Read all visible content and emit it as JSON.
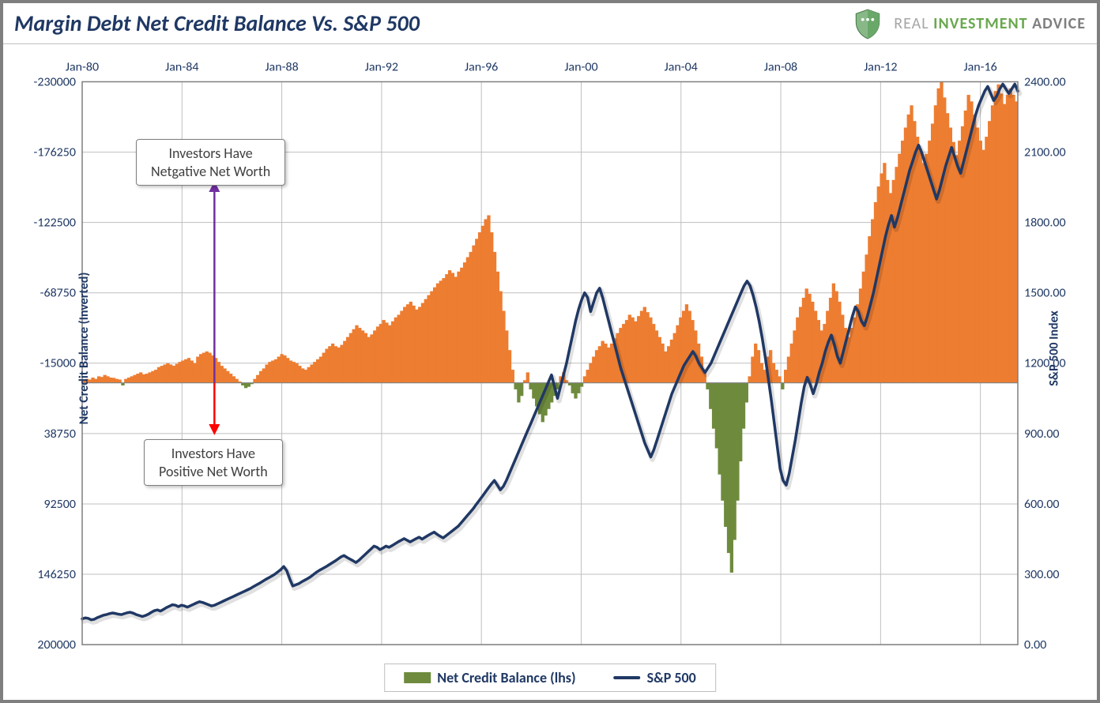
{
  "title": "Margin Debt Net Credit Balance Vs. S&P 500",
  "brand": {
    "t1": "REAL",
    "t2": "INVESTMENT",
    "t3": "ADVICE"
  },
  "chart": {
    "type": "combo-bar-line",
    "background_color": "#ffffff",
    "border_color": "#7f7f7f",
    "grid_color": "#bfbfbf",
    "plot_border_color": "#7f7f7f",
    "x_start": 1980,
    "x_end": 2017.5,
    "x_tick_step": 4,
    "x_ticks": [
      "Jan-80",
      "Jan-84",
      "Jan-88",
      "Jan-92",
      "Jan-96",
      "Jan-00",
      "Jan-04",
      "Jan-08",
      "Jan-12",
      "Jan-16"
    ],
    "left_axis": {
      "title": "Net Credit Balance (Inverted)",
      "min": 200000,
      "max": -230000,
      "ticks": [
        -230000,
        -176250,
        -122500,
        -68750,
        -15000,
        38750,
        92500,
        146250,
        200000
      ],
      "tick_labels": [
        "-230000",
        "-176250",
        "-122500",
        "-68750",
        "-15000",
        "38750",
        "92500",
        "146250",
        "200000"
      ],
      "label_fontsize": 16,
      "color": "#1f3864"
    },
    "right_axis": {
      "title": "S&P 500 Index",
      "min": 0,
      "max": 2400,
      "ticks": [
        0,
        300,
        600,
        900,
        1200,
        1500,
        1800,
        2100,
        2400
      ],
      "tick_labels": [
        "0.00",
        "300.00",
        "600.00",
        "900.00",
        "1200.00",
        "1500.00",
        "1800.00",
        "2100.00",
        "2400.00"
      ],
      "label_fontsize": 16,
      "color": "#1f3864"
    },
    "colors": {
      "bar_neg": "#ed7d31",
      "bar_pos": "#6e8b3d",
      "line": "#203864",
      "line_shadow": "rgba(0,0,0,0.35)"
    },
    "line_width": 3.5,
    "baseline_value_left": 0,
    "net_credit": [
      -2000,
      -3000,
      -2500,
      -4000,
      -3000,
      -5000,
      -4500,
      -6000,
      -5000,
      -4000,
      -3800,
      -3000,
      -2500,
      2000,
      -3000,
      -4000,
      -5000,
      -6000,
      -7000,
      -8000,
      -6500,
      -7000,
      -8000,
      -9000,
      -10000,
      -12000,
      -13000,
      -14000,
      -15000,
      -14000,
      -13000,
      -14500,
      -16000,
      -17000,
      -18000,
      -19000,
      -17000,
      -15000,
      -20000,
      -22000,
      -23000,
      -24000,
      -23000,
      -21000,
      -19000,
      -16000,
      -13000,
      -11000,
      -9000,
      -7000,
      -5000,
      -3000,
      -1000,
      2000,
      4000,
      3000,
      1000,
      -3000,
      -6000,
      -9000,
      -11000,
      -14000,
      -16000,
      -17000,
      -18000,
      -20000,
      -22000,
      -21000,
      -19000,
      -17000,
      -16000,
      -15000,
      -13000,
      -11000,
      -10000,
      -12000,
      -14000,
      -16000,
      -18000,
      -20000,
      -23000,
      -26000,
      -28000,
      -30000,
      -28000,
      -27000,
      -29000,
      -32000,
      -35000,
      -38000,
      -41000,
      -44000,
      -42000,
      -40000,
      -38000,
      -35000,
      -37000,
      -40000,
      -43000,
      -45000,
      -48000,
      -46000,
      -44000,
      -47000,
      -50000,
      -52000,
      -55000,
      -58000,
      -60000,
      -62000,
      -59000,
      -56000,
      -58000,
      -61000,
      -64000,
      -67000,
      -70000,
      -73000,
      -76000,
      -78000,
      -80000,
      -83000,
      -86000,
      -84000,
      -81000,
      -85000,
      -88000,
      -92000,
      -96000,
      -100000,
      -105000,
      -110000,
      -115000,
      -120000,
      -125000,
      -128000,
      -115000,
      -100000,
      -85000,
      -70000,
      -55000,
      -40000,
      -25000,
      -10000,
      5000,
      15000,
      10000,
      -2000,
      -8000,
      5000,
      12000,
      18000,
      24000,
      30000,
      25000,
      20000,
      15000,
      10000,
      5000,
      -5000,
      -8000,
      -2000,
      2000,
      8000,
      12000,
      8000,
      3000,
      -5000,
      -10000,
      -15000,
      -20000,
      -25000,
      -28000,
      -32000,
      -30000,
      -27000,
      -30000,
      -34000,
      -38000,
      -42000,
      -45000,
      -48000,
      -52000,
      -50000,
      -47000,
      -51000,
      -55000,
      -58000,
      -54000,
      -50000,
      -45000,
      -40000,
      -35000,
      -30000,
      -24000,
      -28000,
      -33000,
      -38000,
      -44000,
      -50000,
      -55000,
      -60000,
      -55000,
      -48000,
      -40000,
      -30000,
      -20000,
      -10000,
      5000,
      20000,
      35000,
      50000,
      70000,
      90000,
      110000,
      130000,
      145000,
      120000,
      90000,
      60000,
      35000,
      15000,
      -5000,
      -20000,
      -30000,
      -25000,
      -15000,
      -10000,
      -20000,
      -25000,
      -15000,
      -10000,
      -5000,
      5000,
      -10000,
      -20000,
      -30000,
      -40000,
      -50000,
      -58000,
      -65000,
      -72000,
      -68000,
      -62000,
      -55000,
      -48000,
      -40000,
      -45000,
      -55000,
      -65000,
      -76000,
      -70000,
      -62000,
      -52000,
      -42000,
      -35000,
      -42000,
      -50000,
      -60000,
      -72000,
      -85000,
      -98000,
      -112000,
      -125000,
      -138000,
      -150000,
      -160000,
      -168000,
      -155000,
      -145000,
      -155000,
      -165000,
      -175000,
      -185000,
      -195000,
      -205000,
      -212000,
      -200000,
      -188000,
      -178000,
      -168000,
      -175000,
      -185000,
      -198000,
      -212000,
      -225000,
      -230000,
      -218000,
      -206000,
      -195000,
      -184000,
      -174000,
      -185000,
      -196000,
      -208000,
      -220000,
      -215000,
      -205000,
      -195000,
      -185000,
      -178000,
      -188000,
      -200000,
      -212000,
      -223000,
      -228000,
      -221000,
      -213000,
      -220000,
      -225000,
      -220000,
      -215000
    ],
    "sp500": [
      110,
      114,
      112,
      106,
      108,
      115,
      120,
      125,
      128,
      132,
      135,
      133,
      130,
      128,
      132,
      136,
      138,
      134,
      128,
      124,
      120,
      124,
      130,
      138,
      145,
      148,
      143,
      150,
      158,
      164,
      170,
      168,
      162,
      168,
      165,
      160,
      166,
      172,
      178,
      183,
      180,
      175,
      170,
      165,
      168,
      174,
      180,
      186,
      192,
      198,
      204,
      210,
      216,
      222,
      228,
      234,
      240,
      248,
      255,
      262,
      270,
      278,
      285,
      292,
      300,
      310,
      320,
      333,
      315,
      280,
      250,
      255,
      260,
      268,
      275,
      282,
      290,
      300,
      310,
      318,
      325,
      332,
      340,
      348,
      356,
      365,
      374,
      380,
      372,
      365,
      358,
      350,
      360,
      372,
      384,
      396,
      408,
      420,
      415,
      405,
      412,
      420,
      415,
      422,
      430,
      438,
      445,
      452,
      445,
      438,
      445,
      452,
      458,
      450,
      458,
      466,
      473,
      480,
      470,
      462,
      455,
      465,
      475,
      485,
      495,
      505,
      520,
      535,
      550,
      565,
      580,
      598,
      615,
      632,
      650,
      668,
      685,
      700,
      680,
      660,
      675,
      700,
      730,
      760,
      790,
      820,
      850,
      880,
      910,
      940,
      970,
      1000,
      1030,
      1060,
      1090,
      1120,
      1150,
      1100,
      1050,
      1100,
      1150,
      1200,
      1260,
      1320,
      1380,
      1430,
      1470,
      1500,
      1480,
      1420,
      1460,
      1500,
      1520,
      1480,
      1430,
      1380,
      1330,
      1280,
      1230,
      1180,
      1140,
      1100,
      1060,
      1020,
      980,
      940,
      900,
      860,
      830,
      800,
      830,
      870,
      910,
      950,
      990,
      1030,
      1070,
      1100,
      1130,
      1160,
      1190,
      1210,
      1230,
      1250,
      1230,
      1200,
      1180,
      1160,
      1180,
      1200,
      1230,
      1260,
      1290,
      1320,
      1350,
      1380,
      1410,
      1440,
      1470,
      1500,
      1530,
      1550,
      1530,
      1490,
      1440,
      1380,
      1310,
      1230,
      1140,
      1050,
      950,
      850,
      750,
      700,
      680,
      730,
      800,
      870,
      950,
      1030,
      1100,
      1140,
      1110,
      1070,
      1110,
      1160,
      1200,
      1250,
      1290,
      1320,
      1280,
      1230,
      1200,
      1250,
      1300,
      1350,
      1400,
      1440,
      1420,
      1380,
      1360,
      1400,
      1450,
      1500,
      1560,
      1620,
      1680,
      1740,
      1790,
      1830,
      1780,
      1820,
      1870,
      1920,
      1970,
      2020,
      2060,
      2100,
      2130,
      2100,
      2060,
      2020,
      1980,
      1940,
      1900,
      1940,
      1990,
      2040,
      2080,
      2120,
      2080,
      2040,
      2010,
      2060,
      2110,
      2160,
      2210,
      2260,
      2300,
      2330,
      2360,
      2380,
      2350,
      2320,
      2340,
      2370,
      2390,
      2370,
      2350,
      2370,
      2390,
      2360
    ]
  },
  "callouts": {
    "top": {
      "l1": "Investors Have",
      "l2": "Netgative Net Worth"
    },
    "bot": {
      "l1": "Investors Have",
      "l2": "Positive Net Worth"
    }
  },
  "arrow_colors": {
    "up": "#7030a0",
    "down": "#ff0000"
  },
  "legend": {
    "a": "Net Credit Balance (lhs)",
    "b": "S&P 500"
  }
}
